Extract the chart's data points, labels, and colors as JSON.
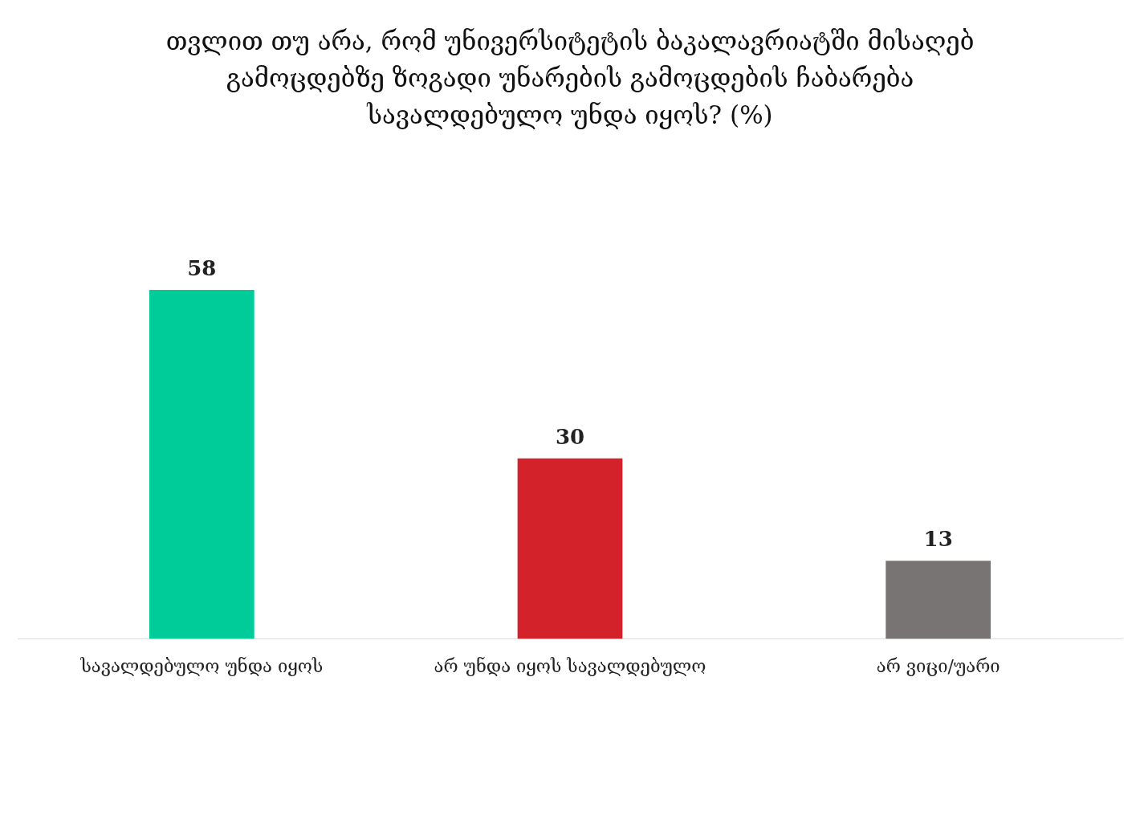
{
  "chart_data": {
    "type": "bar",
    "title": "თვლით თუ არა, რომ უნივერსიტეტის ბაკალავრიატში მისაღებ გამოცდებზე ზოგადი უნარების გამოცდების ჩაბარება სავალდებულო უნდა იყოს? (%)",
    "categories": [
      "სავალდებულო უნდა იყოს",
      "არ უნდა იყოს სავალდებულო",
      "არ ვიცი/უარი"
    ],
    "values": [
      58,
      30,
      13
    ],
    "colors": [
      "#00cc99",
      "#d32229",
      "#787473"
    ],
    "data_labels": true,
    "grid": false,
    "legend": false
  }
}
